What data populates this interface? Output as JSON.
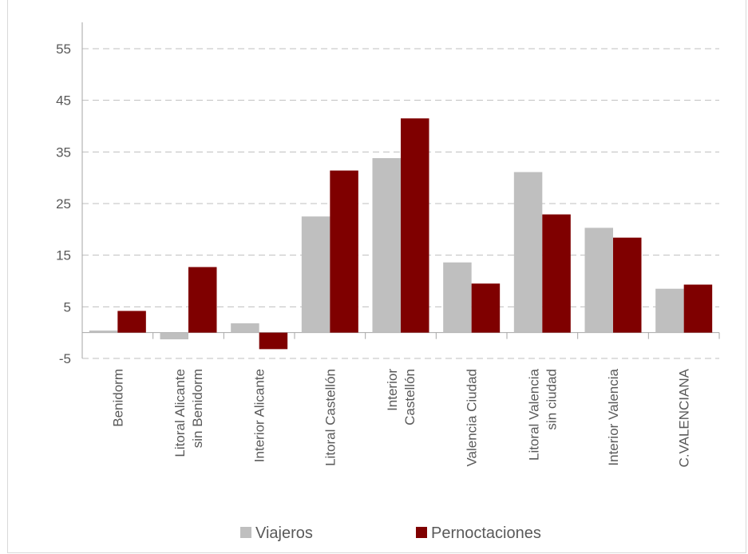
{
  "chart_data": {
    "type": "bar",
    "title": "",
    "xlabel": "",
    "ylabel": "",
    "ylim": [
      -5,
      60
    ],
    "yticks": [
      -5,
      5,
      15,
      25,
      35,
      45,
      55
    ],
    "grid": true,
    "legend_position": "bottom",
    "categories": [
      [
        "Benidorm"
      ],
      [
        "Litoral Alicante",
        "sin Benidorm"
      ],
      [
        "Interior Alicante"
      ],
      [
        "Litoral Castellón"
      ],
      [
        "Interior",
        "Castellón"
      ],
      [
        "Valencia Ciudad"
      ],
      [
        "Litoral Valencia",
        "sin ciudad"
      ],
      [
        "Interior Valencia"
      ],
      [
        "C.VALENCIANA"
      ]
    ],
    "series": [
      {
        "name": "Viajeros",
        "color": "#bfbfbf",
        "values": [
          0.4,
          -1.3,
          1.8,
          22.5,
          33.8,
          13.6,
          31.1,
          20.3,
          8.5
        ]
      },
      {
        "name": "Pernoctaciones",
        "color": "#7f0000",
        "values": [
          4.2,
          12.7,
          -3.2,
          31.4,
          41.5,
          9.5,
          22.9,
          18.4,
          9.3
        ]
      }
    ]
  }
}
